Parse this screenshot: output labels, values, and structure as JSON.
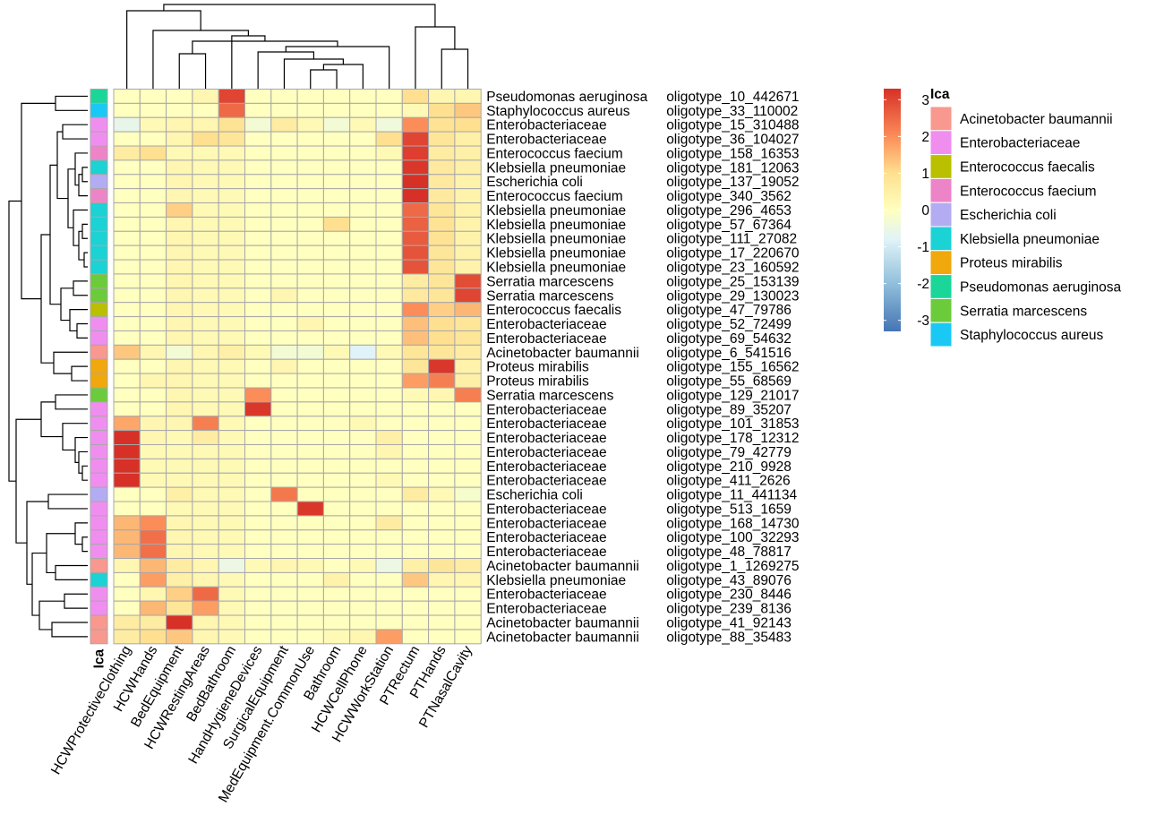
{
  "chart_data": {
    "type": "heatmap",
    "title": "",
    "columns": [
      "HCWProtectiveClothing",
      "HCWHands",
      "BedEquipment",
      "HCWRestingAreas",
      "BedBathroom",
      "HandHygieneDevices",
      "SurgicalEquipment",
      "MedEquipment.CommonUse",
      "Bathroom",
      "HCWCellPhone",
      "HCWWorkStation",
      "PTRectum",
      "PTHands",
      "PTNasalCavity"
    ],
    "rows": [
      {
        "species": "Pseudomonas aeruginosa",
        "oligotype": "oligotype_10_442671",
        "values": [
          0,
          0,
          0,
          0.3,
          3,
          0,
          0,
          0,
          0,
          0,
          0,
          1,
          0.3,
          0.3
        ]
      },
      {
        "species": "Staphylococcus aureus",
        "oligotype": "oligotype_33_110002",
        "values": [
          0,
          0,
          0,
          0,
          2.5,
          0,
          0,
          0,
          0,
          0,
          0,
          0.2,
          1,
          1.3
        ]
      },
      {
        "species": "Enterobacteriaceae",
        "oligotype": "oligotype_15_310488",
        "values": [
          -0.6,
          0.2,
          0.3,
          0.3,
          0.9,
          -0.3,
          0.6,
          0.2,
          -0.3,
          0.2,
          -0.4,
          2,
          0.9,
          1
        ]
      },
      {
        "species": "Enterobacteriaceae",
        "oligotype": "oligotype_36_104027",
        "values": [
          0,
          0,
          0.3,
          1,
          0.8,
          0,
          0,
          0,
          0,
          0,
          1,
          3,
          0.8,
          0.5
        ]
      },
      {
        "species": "Enterococcus faecium",
        "oligotype": "oligotype_158_16353",
        "values": [
          0.6,
          1,
          0.2,
          0.2,
          0.2,
          0,
          0,
          0,
          0,
          0,
          0.2,
          3.1,
          0.6,
          0.5
        ]
      },
      {
        "species": "Klebsiella pneumoniae",
        "oligotype": "oligotype_181_12063",
        "values": [
          0,
          0,
          0.3,
          0.2,
          0.2,
          0,
          0,
          0,
          0,
          0,
          0,
          3.2,
          0.7,
          0.5
        ]
      },
      {
        "species": "Escherichia coli",
        "oligotype": "oligotype_137_19052",
        "values": [
          0,
          0,
          0.3,
          0.2,
          0.2,
          0,
          0,
          0,
          0,
          0,
          0,
          3.3,
          0.7,
          0.4
        ]
      },
      {
        "species": "Enterococcus faecium",
        "oligotype": "oligotype_340_3562",
        "values": [
          0,
          0,
          0.3,
          0.2,
          0.2,
          0,
          0,
          0,
          0,
          0,
          0,
          3.3,
          0.7,
          0.4
        ]
      },
      {
        "species": "Klebsiella pneumoniae",
        "oligotype": "oligotype_296_4653",
        "values": [
          0,
          0,
          1.2,
          0.2,
          0.2,
          0,
          0,
          0,
          0,
          0,
          0,
          2.5,
          0.8,
          0.4
        ]
      },
      {
        "species": "Klebsiella pneumoniae",
        "oligotype": "oligotype_57_67364",
        "values": [
          0,
          0,
          0.3,
          0.2,
          0.2,
          0,
          0,
          0,
          1,
          0,
          0,
          2.6,
          0.9,
          0.4
        ]
      },
      {
        "species": "Klebsiella pneumoniae",
        "oligotype": "oligotype_111_27082",
        "values": [
          0,
          0,
          0.3,
          0.2,
          0.2,
          0,
          0,
          0,
          0,
          0,
          0,
          2.7,
          0.9,
          0.4
        ]
      },
      {
        "species": "Klebsiella pneumoniae",
        "oligotype": "oligotype_17_220670",
        "values": [
          0,
          0,
          0.3,
          0.2,
          0.2,
          0,
          0,
          0,
          0,
          0,
          0,
          2.8,
          0.8,
          0.4
        ]
      },
      {
        "species": "Klebsiella pneumoniae",
        "oligotype": "oligotype_23_160592",
        "values": [
          0,
          0,
          0.3,
          0.2,
          0.2,
          0,
          0,
          0,
          0,
          0,
          0,
          2.8,
          0.8,
          0.4
        ]
      },
      {
        "species": "Serratia marcescens",
        "oligotype": "oligotype_25_153139",
        "values": [
          0,
          0,
          0.3,
          0.2,
          0.2,
          0,
          0,
          0,
          0,
          0,
          0,
          0.6,
          0.8,
          2.9
        ]
      },
      {
        "species": "Serratia marcescens",
        "oligotype": "oligotype_29_130023",
        "values": [
          0,
          0,
          0.3,
          0.2,
          0.2,
          0,
          0.3,
          0,
          0,
          0,
          0,
          0.7,
          0.8,
          3
        ]
      },
      {
        "species": "Enterococcus faecalis",
        "oligotype": "oligotype_47_79786",
        "values": [
          0,
          0,
          0.3,
          0.2,
          0.2,
          0,
          0,
          0,
          0,
          0,
          0,
          2,
          1.2,
          1.5
        ]
      },
      {
        "species": "Enterobacteriaceae",
        "oligotype": "oligotype_52_72499",
        "values": [
          0,
          0,
          0.3,
          0.2,
          0.2,
          0,
          0,
          0.3,
          0,
          0,
          0,
          1.4,
          1,
          0.8
        ]
      },
      {
        "species": "Enterobacteriaceae",
        "oligotype": "oligotype_69_54632",
        "values": [
          0,
          0,
          0.3,
          0.2,
          0.2,
          0,
          0,
          0,
          0,
          0,
          0,
          1.4,
          1,
          0.8
        ]
      },
      {
        "species": "Acinetobacter baumannii",
        "oligotype": "oligotype_6_541516",
        "values": [
          1.3,
          0.3,
          -0.3,
          0.3,
          0.5,
          0.2,
          -0.3,
          -0.3,
          0.2,
          -0.8,
          0.2,
          0.8,
          0.8,
          0.6
        ]
      },
      {
        "species": "Proteus mirabilis",
        "oligotype": "oligotype_155_16562",
        "values": [
          0,
          0,
          0.3,
          0.2,
          0.2,
          0,
          0.3,
          0,
          0,
          0,
          0,
          0.8,
          3.2,
          0.4
        ]
      },
      {
        "species": "Proteus mirabilis",
        "oligotype": "oligotype_55_68569",
        "values": [
          0,
          0.3,
          0.3,
          0.2,
          0.2,
          0,
          0,
          0,
          0,
          0,
          0,
          1.8,
          2.2,
          0.5
        ]
      },
      {
        "species": "Serratia marcescens",
        "oligotype": "oligotype_129_21017",
        "values": [
          0,
          0,
          0.3,
          0.2,
          0.2,
          2,
          0,
          0,
          0,
          0,
          0,
          0.2,
          0.3,
          2.2
        ]
      },
      {
        "species": "Enterobacteriaceae",
        "oligotype": "oligotype_89_35207",
        "values": [
          0,
          0,
          0.3,
          0.2,
          0.2,
          3.2,
          0,
          0,
          0,
          0,
          0,
          0,
          0,
          0
        ]
      },
      {
        "species": "Enterobacteriaceae",
        "oligotype": "oligotype_101_31853",
        "values": [
          1.7,
          0.3,
          0.3,
          2.2,
          0.2,
          0,
          0,
          0,
          0,
          0.2,
          0,
          0,
          0,
          0
        ]
      },
      {
        "species": "Enterobacteriaceae",
        "oligotype": "oligotype_178_12312",
        "values": [
          3.3,
          0.3,
          0.2,
          0.6,
          0.2,
          0,
          0,
          0,
          0,
          0,
          0.5,
          0,
          0,
          0
        ]
      },
      {
        "species": "Enterobacteriaceae",
        "oligotype": "oligotype_79_42779",
        "values": [
          3.3,
          0.2,
          0.2,
          0.2,
          0.2,
          0,
          0,
          0,
          0,
          0,
          0.3,
          0,
          0,
          0
        ]
      },
      {
        "species": "Enterobacteriaceae",
        "oligotype": "oligotype_210_9928",
        "values": [
          3.3,
          0.2,
          0.2,
          0.2,
          0.2,
          0,
          0,
          0,
          0,
          0,
          0,
          0,
          0,
          0
        ]
      },
      {
        "species": "Enterobacteriaceae",
        "oligotype": "oligotype_411_2626",
        "values": [
          3.3,
          0.2,
          0.2,
          0.2,
          0.2,
          0,
          0,
          0,
          0,
          0,
          0.2,
          0,
          0,
          0
        ]
      },
      {
        "species": "Escherichia coli",
        "oligotype": "oligotype_11_441134",
        "values": [
          0,
          0,
          0.5,
          0.2,
          0.2,
          0,
          2.3,
          0,
          0,
          0,
          0,
          0.6,
          0.2,
          -0.2
        ]
      },
      {
        "species": "Enterobacteriaceae",
        "oligotype": "oligotype_513_1659",
        "values": [
          0,
          0,
          0.2,
          0.2,
          0.2,
          0,
          0,
          3.2,
          0,
          0,
          0,
          0,
          0,
          0
        ]
      },
      {
        "species": "Enterobacteriaceae",
        "oligotype": "oligotype_168_14730",
        "values": [
          1.5,
          2,
          0.3,
          0.2,
          0.2,
          0,
          0,
          0,
          0,
          0,
          0.6,
          0,
          0,
          0
        ]
      },
      {
        "species": "Enterobacteriaceae",
        "oligotype": "oligotype_100_32293",
        "values": [
          1.5,
          2.4,
          0.3,
          0.2,
          0.2,
          0,
          0,
          0,
          0,
          0,
          0,
          0,
          0,
          0
        ]
      },
      {
        "species": "Enterobacteriaceae",
        "oligotype": "oligotype_48_78817",
        "values": [
          1.5,
          2.4,
          0.3,
          0.2,
          0.2,
          0,
          0,
          0,
          0,
          0,
          0,
          0,
          0,
          0
        ]
      },
      {
        "species": "Acinetobacter baumannii",
        "oligotype": "oligotype_1_1269275",
        "values": [
          0.3,
          1.5,
          0.6,
          0.3,
          -0.5,
          0.2,
          0.3,
          0.2,
          0,
          0.2,
          -0.5,
          0.5,
          0.8,
          0.6
        ]
      },
      {
        "species": "Klebsiella pneumoniae",
        "oligotype": "oligotype_43_89076",
        "values": [
          0,
          1.8,
          0.5,
          0.3,
          0.2,
          0,
          0,
          0,
          0.4,
          0,
          0,
          1.3,
          0.3,
          0.3
        ]
      },
      {
        "species": "Enterobacteriaceae",
        "oligotype": "oligotype_230_8446",
        "values": [
          0,
          0.3,
          1.2,
          2.5,
          0.2,
          0,
          0,
          0,
          0,
          0,
          0,
          0,
          0,
          0
        ]
      },
      {
        "species": "Enterobacteriaceae",
        "oligotype": "oligotype_239_8136",
        "values": [
          0,
          1.5,
          0.8,
          1.8,
          0.2,
          0,
          0,
          0,
          0,
          0,
          0,
          0,
          0,
          0
        ]
      },
      {
        "species": "Acinetobacter baumannii",
        "oligotype": "oligotype_41_92143",
        "values": [
          0.6,
          0.6,
          3.3,
          0.3,
          0.2,
          0,
          0,
          0,
          0,
          0,
          0,
          0,
          0,
          0
        ]
      },
      {
        "species": "Acinetobacter baumannii",
        "oligotype": "oligotype_88_35483",
        "values": [
          0.6,
          1,
          1.3,
          0.3,
          0.2,
          0,
          0,
          0,
          0.2,
          0.3,
          1.8,
          0,
          0,
          0
        ]
      }
    ],
    "color_scale": {
      "min": -3.3,
      "max": 3.3,
      "stops": [
        {
          "value": -3.3,
          "color": "#4575b4"
        },
        {
          "value": -2,
          "color": "#91bfdb"
        },
        {
          "value": -0.8,
          "color": "#e0f3f8"
        },
        {
          "value": 0,
          "color": "#ffffbf"
        },
        {
          "value": 1,
          "color": "#fee090"
        },
        {
          "value": 2,
          "color": "#fc8d59"
        },
        {
          "value": 3.3,
          "color": "#d73027"
        }
      ],
      "ticks": [
        "3",
        "2",
        "1",
        "0",
        "-1",
        "-2",
        "-3"
      ]
    },
    "row_annotation_title": "Ica",
    "legend_title": "Ica",
    "legend": [
      {
        "label": "Acinetobacter baumannii",
        "color": "#F8988E"
      },
      {
        "label": "Enterobacteriaceae",
        "color": "#F08EF0"
      },
      {
        "label": "Enterococcus faecalis",
        "color": "#BABF00"
      },
      {
        "label": "Enterococcus faecium",
        "color": "#EE84C8"
      },
      {
        "label": "Escherichia coli",
        "color": "#B4ACF3"
      },
      {
        "label": "Klebsiella pneumoniae",
        "color": "#1BD2D5"
      },
      {
        "label": "Proteus mirabilis",
        "color": "#F0A80C"
      },
      {
        "label": "Pseudomonas aeruginosa",
        "color": "#1BD699"
      },
      {
        "label": "Serratia marcescens",
        "color": "#6CCB3A"
      },
      {
        "label": "Staphylococcus aureus",
        "color": "#1AC8F5"
      }
    ]
  }
}
